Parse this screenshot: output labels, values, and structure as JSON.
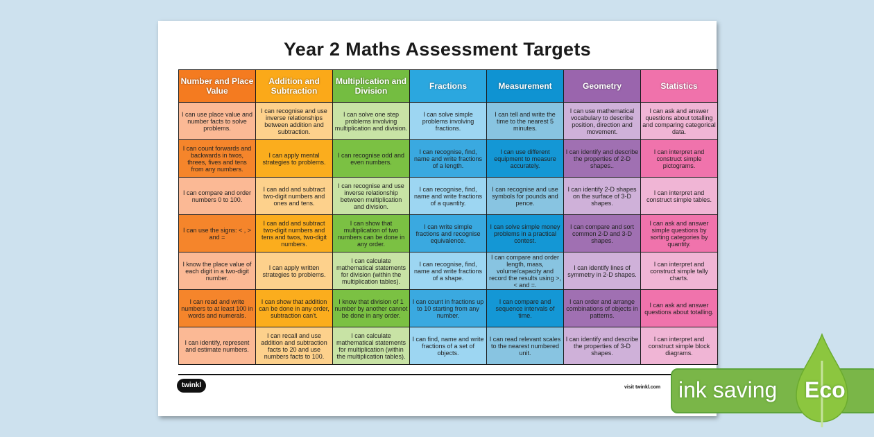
{
  "title": "Year 2 Maths Assessment Targets",
  "columns": [
    {
      "heading": "Number and Place Value",
      "header_color": "#f47b20",
      "dark": "#f5852b",
      "light": "#fbb995"
    },
    {
      "heading": "Addition and Subtraction",
      "header_color": "#fba919",
      "dark": "#fbad1d",
      "light": "#fdd18c"
    },
    {
      "heading": "Multiplication and Division",
      "header_color": "#74bd41",
      "dark": "#7bc143",
      "light": "#c8e3a5"
    },
    {
      "heading": "Fractions",
      "header_color": "#2ba7df",
      "dark": "#3aa9e0",
      "light": "#9dd6f2"
    },
    {
      "heading": "Measurement",
      "header_color": "#0f93d2",
      "dark": "#1497d5",
      "light": "#88c4e1"
    },
    {
      "heading": "Geometry",
      "header_color": "#9a65ad",
      "dark": "#a070b2",
      "light": "#cfb1d9"
    },
    {
      "heading": "Statistics",
      "header_color": "#f072ab",
      "dark": "#f073ac",
      "light": "#f0b5d5"
    }
  ],
  "rows": [
    [
      "I can use place value and number facts to solve problems.",
      "I can recognise and use inverse relationships between addition and subtraction.",
      "I can solve one step problems involving multiplication and division.",
      "I can solve simple problems involving fractions.",
      "I can tell and write the time to the nearest 5 minutes.",
      "I can use mathematical vocabulary to describe position, direction and movement.",
      "I can ask and answer questions about totalling and comparing categorical data."
    ],
    [
      "I can count forwards and backwards in twos, threes, fives and tens from any numbers.",
      "I can apply mental strategies to problems.",
      "I can recognise odd and even numbers.",
      "I can recognise, find, name and write fractions of a length.",
      "I can use different equipment to measure accurately.",
      "I can identify and describe the properties of 2-D shapes..",
      "I can interpret and construct simple pictograms."
    ],
    [
      "I can compare and order numbers 0 to 100.",
      "I can add and subtract two-digit numbers and ones and tens.",
      "I can recognise and use inverse relationship between multiplication and division.",
      "I can recognise, find, name and write fractions of a quantity.",
      "I can recognise and use symbols for pounds and pence.",
      "I can identify 2-D shapes on the surface of 3-D shapes.",
      "I can interpret and construct simple tables."
    ],
    [
      "I can use the signs: < , > and =",
      "I can add and subtract two-digit numbers and tens and twos, two-digit numbers.",
      "I can show that multiplication of two numbers can be done in any order.",
      "I can write simple fractions and recognise equivalence.",
      "I can solve simple money problems in a practical contest.",
      "I can compare and sort common 2-D and 3-D shapes.",
      "I can ask and answer simple questions by sorting categories by quantity."
    ],
    [
      "I know the place value of each digit in a two-digit number.",
      "I can apply written strategies to problems.",
      "I can calculate mathematical statements for division (within the multiplication tables).",
      "I can recognise, find, name and write fractions of a shape.",
      "I can compare and order length, mass, volume/capacity and record the results using >,< and =.",
      "I can identify lines of symmetry in 2-D shapes.",
      "I can interpret and construct simple tally charts."
    ],
    [
      "I can read and write numbers to at least 100 in words and numerals.",
      "I can show that addition can be done in any order, subtraction can't.",
      "I know that division of 1 number by another cannot be done in any order.",
      "I can count in fractions up to 10 starting from any number.",
      "I can compare and sequence intervals of time.",
      "I can order and arrange combinations of objects in patterns.",
      "I can ask and answer questions about totalling."
    ],
    [
      "I can identify, represent and estimate numbers.",
      "I can recall and use addition and subtraction facts to 20 and use numbers facts to 100.",
      "I can calculate mathematical statements for multiplication (within the multiplication tables).",
      "I can find, name and write fractions of a set of objects.",
      "I can read relevant scales to the nearest numbered unit.",
      "I can identify and describe the properties of 3-D shapes.",
      "I can interpret and construct simple block diagrams."
    ]
  ],
  "footer": {
    "logo": "twinkl",
    "visit": "visit twinkl.com"
  },
  "badge": {
    "text": "ink saving",
    "eco": "Eco",
    "color": "#7ab648"
  }
}
